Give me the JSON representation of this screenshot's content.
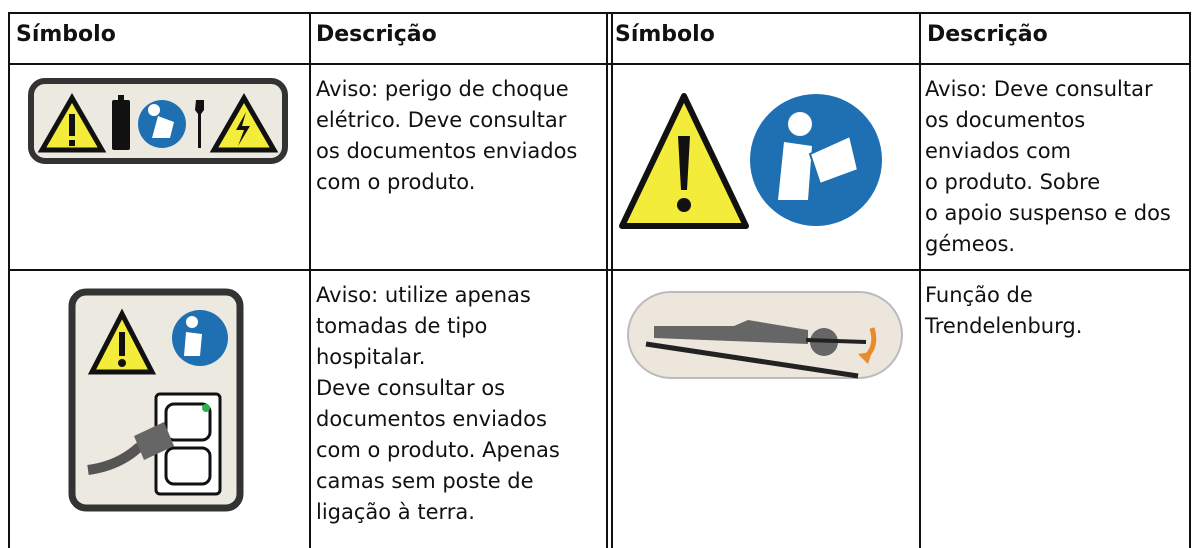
{
  "table": {
    "header": [
      "Símbolo",
      "Descrição",
      "Símbolo",
      "Descrição"
    ],
    "rows": [
      {
        "left_description": [
          "Aviso: perigo de choque",
          "elétrico. Deve consultar",
          "os documentos enviados",
          "com o produto."
        ],
        "right_description": [
          "Aviso: Deve consultar",
          "os documentos",
          "enviados com",
          "o produto. Sobre",
          "o apoio suspenso e dos",
          "gémeos."
        ]
      },
      {
        "left_description": [
          "Aviso: utilize apenas",
          "tomadas de tipo",
          "hospitalar.",
          "Deve consultar os",
          "documentos enviados",
          "com o produto. Apenas",
          "camas sem poste de",
          "ligação à terra."
        ],
        "right_description": [
          "Função de",
          "Trendelenburg."
        ]
      }
    ]
  }
}
